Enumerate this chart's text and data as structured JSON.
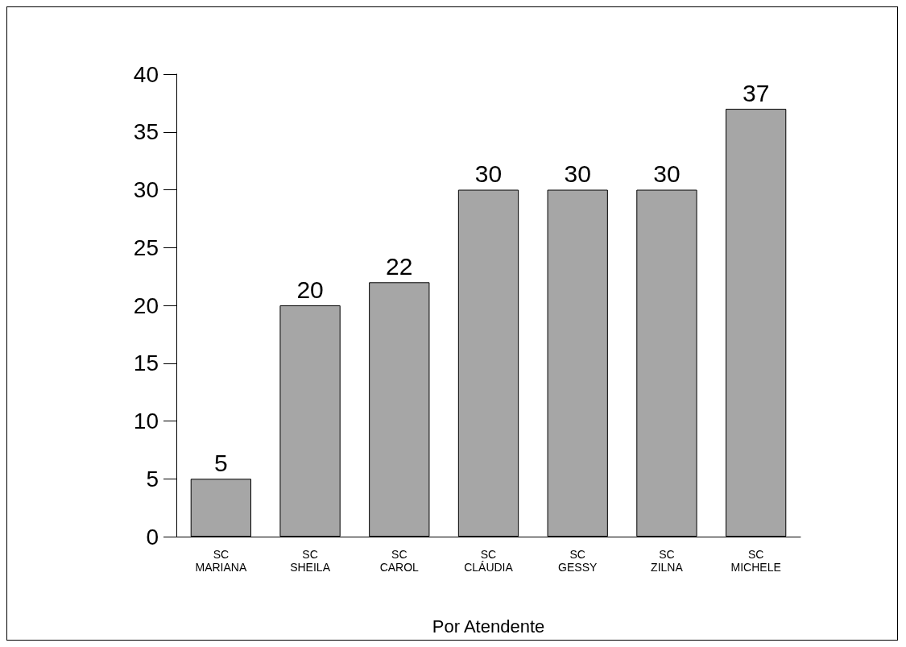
{
  "chart_data": {
    "type": "bar",
    "xlabel": "Por Atendente",
    "categories": [
      "SC\nMARIANA",
      "SC\nSHEILA",
      "SC\nCAROL",
      "SC\nCLÁUDIA",
      "SC\nGESSY",
      "SC\nZILNA",
      "SC\nMICHELE"
    ],
    "values": [
      5,
      20,
      22,
      30,
      30,
      30,
      37
    ],
    "color": "#a6a6a6",
    "ylim": [
      0,
      40
    ],
    "yticks": [
      0,
      5,
      10,
      15,
      20,
      25,
      30,
      35,
      40
    ],
    "grid": false,
    "data_labels": true
  }
}
